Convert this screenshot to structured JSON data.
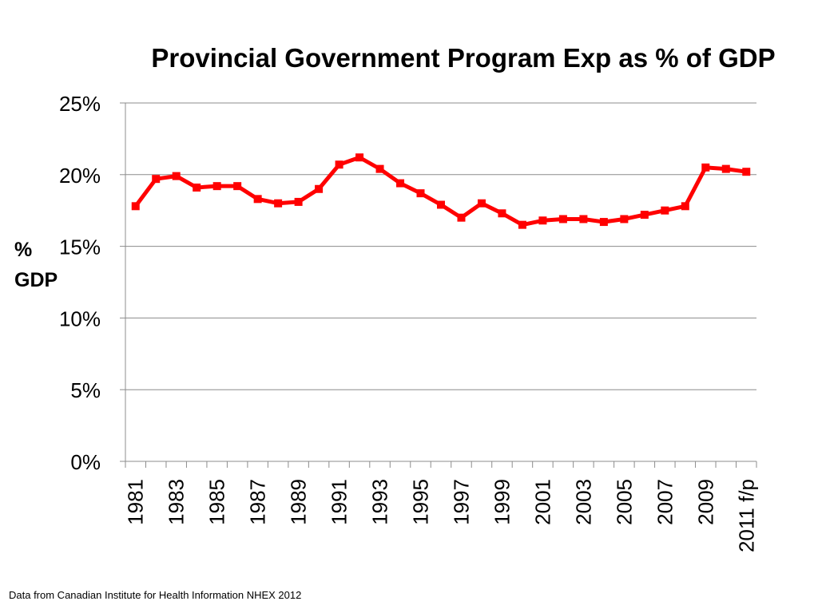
{
  "chart_data": {
    "type": "line",
    "title": "Provincial Government Program Exp as % of GDP",
    "ylabel_lines": [
      "%",
      "GDP"
    ],
    "xlabel": "",
    "categories": [
      "1981",
      "1982",
      "1983",
      "1984",
      "1985",
      "1986",
      "1987",
      "1988",
      "1989",
      "1990",
      "1991",
      "1992",
      "1993",
      "1994",
      "1995",
      "1996",
      "1997",
      "1998",
      "1999",
      "2000",
      "2001",
      "2002",
      "2003",
      "2004",
      "2005",
      "2006",
      "2007",
      "2008",
      "2009",
      "2010",
      "2011 f/p"
    ],
    "x_tick_labels": [
      "1981",
      "1983",
      "1985",
      "1987",
      "1989",
      "1991",
      "1993",
      "1995",
      "1997",
      "1999",
      "2001",
      "2003",
      "2005",
      "2007",
      "2009",
      "2011 f/p"
    ],
    "series": [
      {
        "values": [
          17.8,
          19.7,
          19.9,
          19.1,
          19.2,
          19.2,
          18.3,
          18.0,
          18.1,
          19.0,
          20.7,
          21.2,
          20.4,
          19.4,
          18.7,
          17.9,
          17.0,
          18.0,
          17.3,
          16.5,
          16.8,
          16.9,
          16.9,
          16.7,
          16.9,
          17.2,
          17.5,
          17.8,
          20.5,
          20.4,
          20.2
        ],
        "color": "#ff0000"
      }
    ],
    "y_ticks": [
      "0%",
      "5%",
      "10%",
      "15%",
      "20%",
      "25%"
    ],
    "ylim": [
      0,
      25
    ],
    "grid": true,
    "legend": "none"
  },
  "footnote": "Data from Canadian Institute for Health Information NHEX 2012"
}
